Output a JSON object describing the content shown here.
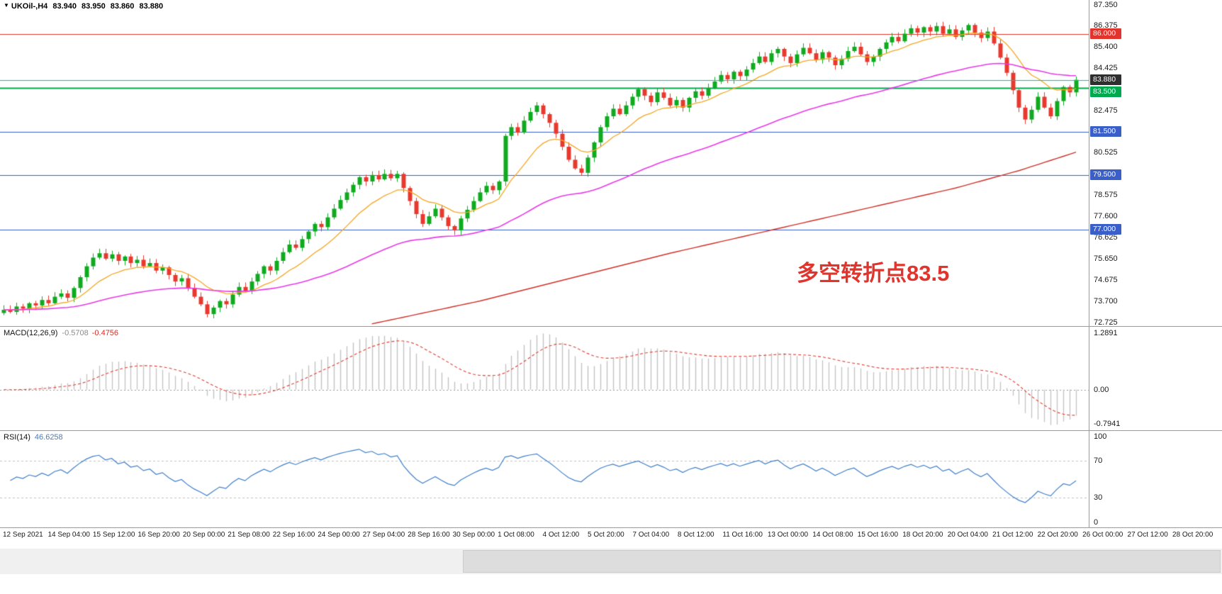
{
  "header": {
    "collapse_icon": "▼",
    "symbol": "UKOil-,H4",
    "open": "83.940",
    "high": "83.950",
    "low": "83.860",
    "close": "83.880"
  },
  "colors": {
    "up": "#0faa1f",
    "down": "#e8392e",
    "ma_fast": "#f5a623",
    "ma_mid": "#e838e8",
    "ma_slow": "#d03028",
    "bid_line": "#20b2aa",
    "line_red": "#e0342c",
    "line_green": "#00a94f",
    "line_blue": "#3a5fc8",
    "macd_bar": "#c4c4c4",
    "macd_signal": "#e03c31",
    "rsi_line": "#3f7fca",
    "level_dash": "#c0c0c0",
    "annotation": "#e0342c"
  },
  "chart_data": [
    {
      "type": "candlestick",
      "title": "UKOil-,H4",
      "timeframe": "H4",
      "x_labels": [
        "12 Sep 2021",
        "14 Sep 04:00",
        "15 Sep 12:00",
        "16 Sep 20:00",
        "20 Sep 00:00",
        "21 Sep 08:00",
        "22 Sep 16:00",
        "24 Sep 00:00",
        "27 Sep 04:00",
        "28 Sep 16:00",
        "30 Sep 00:00",
        "1 Oct 08:00",
        "4 Oct 12:00",
        "5 Oct 20:00",
        "7 Oct 04:00",
        "8 Oct 12:00",
        "11 Oct 16:00",
        "13 Oct 00:00",
        "14 Oct 08:00",
        "15 Oct 16:00",
        "18 Oct 20:00",
        "20 Oct 04:00",
        "21 Oct 12:00",
        "22 Oct 20:00",
        "26 Oct 00:00",
        "27 Oct 12:00",
        "28 Oct 20:00"
      ],
      "y_axis": {
        "range": [
          72.55,
          87.55
        ],
        "labels": [
          {
            "text": "87.350",
            "v": 87.35
          },
          {
            "text": "86.375",
            "v": 86.375
          },
          {
            "text": "85.400",
            "v": 85.4
          },
          {
            "text": "84.425",
            "v": 84.425
          },
          {
            "text": "82.475",
            "v": 82.475
          },
          {
            "text": "80.525",
            "v": 80.525
          },
          {
            "text": "78.575",
            "v": 78.575
          },
          {
            "text": "77.600",
            "v": 77.6
          },
          {
            "text": "76.625",
            "v": 76.625
          },
          {
            "text": "75.650",
            "v": 75.65
          },
          {
            "text": "74.675",
            "v": 74.675
          },
          {
            "text": "73.700",
            "v": 73.7
          },
          {
            "text": "72.725",
            "v": 72.725
          }
        ]
      },
      "price_badges": [
        {
          "text": "86.000",
          "v": 86.0,
          "bg": "#e0342c"
        },
        {
          "text": "83.880",
          "v": 83.88,
          "bg": "#2f2f2f"
        },
        {
          "text": "83.500",
          "v": 83.5,
          "bg": "#00a94f",
          "nudge": 6
        },
        {
          "text": "81.500",
          "v": 81.5,
          "bg": "#3a5fc8"
        },
        {
          "text": "79.500",
          "v": 79.5,
          "bg": "#3a5fc8"
        },
        {
          "text": "77.000",
          "v": 77.0,
          "bg": "#3a5fc8"
        }
      ],
      "horizontal_lines": [
        {
          "v": 86.0,
          "color": "#e0342c",
          "w": 1
        },
        {
          "v": 83.5,
          "color": "#00a94f",
          "w": 2
        },
        {
          "v": 81.5,
          "color": "#3a5fc8",
          "w": 1
        },
        {
          "v": 79.5,
          "color": "#3a5fc8",
          "w": 1
        },
        {
          "v": 77.0,
          "color": "#3a5fc8",
          "w": 1
        },
        {
          "v": 83.88,
          "color": "#20b2aa",
          "w": 1,
          "bid": true
        }
      ],
      "first_open": 73.15,
      "closes": [
        73.3,
        73.2,
        73.45,
        73.35,
        73.6,
        73.5,
        73.75,
        73.6,
        73.9,
        74.05,
        73.85,
        74.3,
        74.8,
        75.3,
        75.7,
        75.9,
        75.65,
        75.85,
        75.55,
        75.75,
        75.45,
        75.6,
        75.3,
        75.45,
        75.1,
        75.25,
        74.9,
        74.6,
        74.75,
        74.3,
        73.9,
        73.55,
        73.1,
        73.4,
        73.7,
        73.55,
        74.0,
        74.35,
        74.15,
        74.6,
        74.95,
        75.3,
        75.1,
        75.55,
        75.95,
        76.3,
        76.15,
        76.55,
        76.9,
        77.25,
        77.1,
        77.55,
        77.95,
        78.35,
        78.7,
        79.05,
        79.4,
        79.2,
        79.5,
        79.3,
        79.55,
        79.35,
        79.55,
        78.9,
        78.3,
        77.7,
        77.25,
        77.6,
        77.95,
        77.55,
        77.15,
        76.95,
        77.5,
        77.9,
        78.3,
        78.7,
        79.0,
        78.8,
        79.2,
        81.3,
        81.7,
        81.45,
        82.0,
        82.4,
        82.7,
        82.3,
        81.9,
        81.4,
        80.8,
        80.2,
        79.8,
        79.6,
        80.3,
        81.0,
        81.7,
        82.2,
        82.55,
        82.3,
        82.7,
        83.1,
        83.45,
        83.15,
        82.85,
        83.3,
        83.05,
        82.7,
        82.95,
        82.6,
        83.05,
        83.35,
        83.15,
        83.5,
        83.8,
        84.1,
        83.9,
        84.25,
        84.05,
        84.35,
        84.65,
        84.95,
        84.7,
        85.1,
        85.3,
        84.95,
        84.65,
        85.05,
        85.35,
        85.1,
        84.8,
        85.15,
        84.9,
        84.55,
        84.85,
        85.2,
        85.4,
        85.05,
        84.7,
        84.95,
        85.3,
        85.6,
        85.85,
        85.65,
        86.0,
        86.25,
        86.05,
        86.3,
        86.1,
        86.35,
        86.0,
        86.2,
        85.85,
        86.15,
        86.4,
        86.05,
        85.8,
        86.1,
        85.55,
        84.9,
        84.2,
        83.4,
        82.6,
        82.05,
        82.5,
        83.1,
        82.6,
        82.2,
        82.9,
        83.55,
        83.3,
        83.88
      ],
      "ma_fast_period": 12,
      "ma_mid_period": 55,
      "ma_slow_points": [
        [
          58,
          72.65
        ],
        [
          75,
          73.7
        ],
        [
          90,
          74.8
        ],
        [
          105,
          75.9
        ],
        [
          120,
          76.9
        ],
        [
          135,
          77.9
        ],
        [
          150,
          78.9
        ],
        [
          160,
          79.7
        ],
        [
          169,
          80.55
        ]
      ],
      "annotation": {
        "text": "多空转折点83.5"
      }
    },
    {
      "type": "bar",
      "name": "MACD(12,26,9)",
      "value_main": "-0.5708",
      "value_signal": "-0.4756",
      "params": {
        "fast": 12,
        "slow": 26,
        "signal": 9
      },
      "range": [
        -0.85,
        1.35
      ],
      "axis_labels": [
        {
          "text": "1.2891",
          "pos": "top"
        },
        {
          "text": "0.00",
          "pos": "zero"
        },
        {
          "text": "-0.7941",
          "pos": "bottom"
        }
      ]
    },
    {
      "type": "line",
      "name": "RSI(14)",
      "value": "46.6258",
      "period": 14,
      "levels": [
        70,
        30
      ],
      "range": [
        0,
        100
      ],
      "axis_labels": [
        {
          "text": "100",
          "v": 100
        },
        {
          "text": "70",
          "v": 70
        },
        {
          "text": "30",
          "v": 30
        },
        {
          "text": "0",
          "v": 0
        }
      ]
    }
  ]
}
